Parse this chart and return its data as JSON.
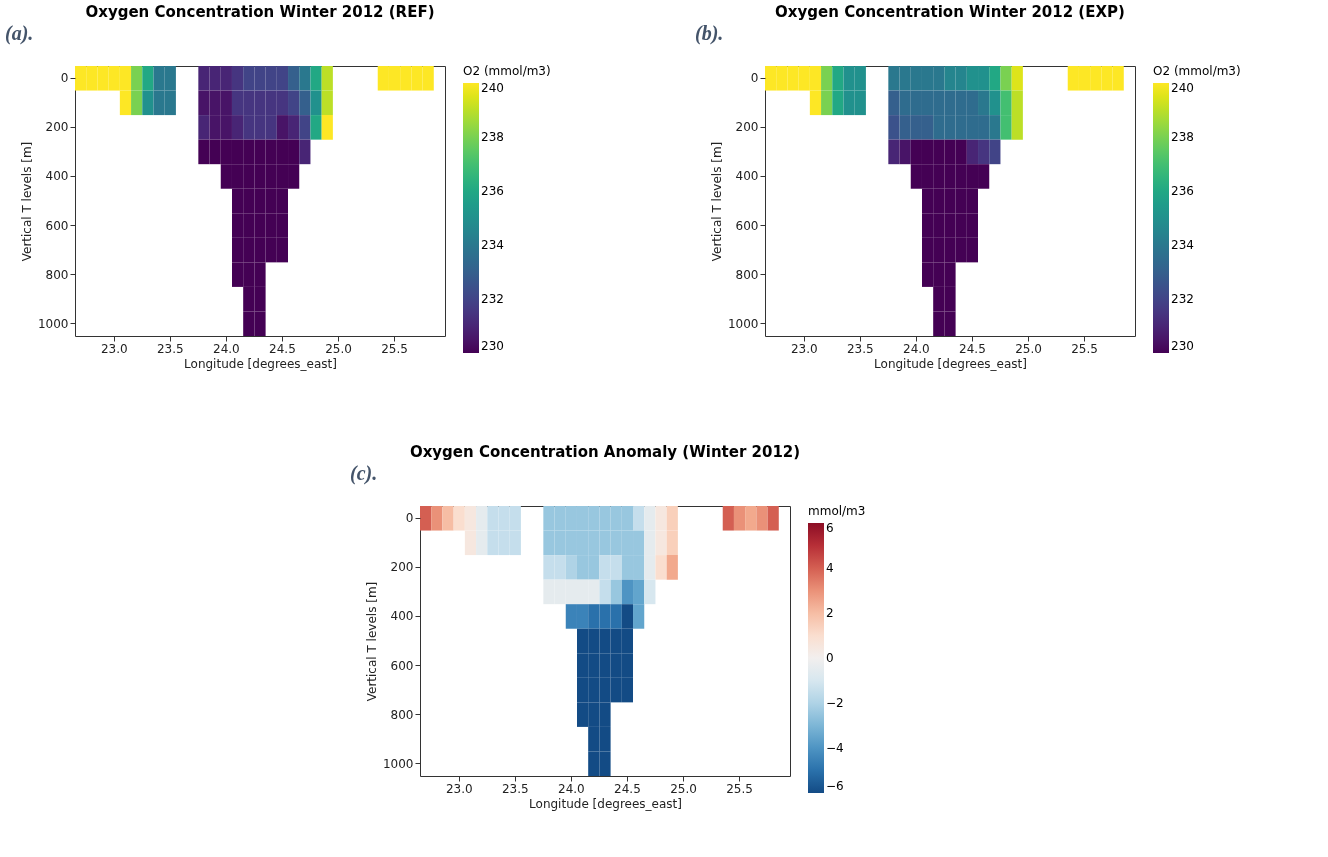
{
  "chart_data": [
    {
      "type": "heatmap",
      "title": "Oxygen Concentration Winter 2012 (REF)",
      "annotations": [
        "(a)."
      ],
      "xlabel": "Longitude [degrees_east]",
      "ylabel": "Vertical T levels [m]",
      "clabel": "O2 (mmol/m3)",
      "clim": [
        230,
        240
      ],
      "cticks": [
        230,
        232,
        234,
        236,
        238,
        240
      ],
      "categories": [
        null,
        null,
        null,
        "23.0",
        null,
        null,
        null,
        null,
        "23.5",
        null,
        null,
        null,
        null,
        "24.0",
        null,
        null,
        null,
        null,
        "24.5",
        null,
        null,
        null,
        null,
        "25.0",
        null,
        null,
        null,
        null,
        "25.5",
        null,
        null,
        null,
        null
      ],
      "y_categories": [
        "0",
        null,
        "200",
        null,
        "400",
        null,
        "600",
        null,
        "800",
        null,
        "1000"
      ],
      "cells": [
        [
          240,
          240,
          240,
          240,
          240,
          238,
          236,
          234,
          234,
          null,
          null,
          231,
          231,
          231,
          231.5,
          232,
          232,
          232,
          232,
          233,
          234,
          236,
          239,
          null,
          null,
          null,
          null,
          240,
          240,
          240,
          240,
          240,
          null
        ],
        [
          null,
          null,
          null,
          null,
          240,
          238,
          235,
          234,
          234,
          null,
          null,
          230.5,
          230.5,
          230.5,
          231.5,
          231.5,
          231.5,
          231.5,
          231.5,
          232,
          233,
          235,
          239,
          null,
          null,
          null,
          null,
          null,
          null,
          null,
          null,
          null,
          null
        ],
        [
          null,
          null,
          null,
          null,
          null,
          null,
          null,
          null,
          null,
          null,
          null,
          231,
          230.5,
          230.5,
          231,
          231.5,
          231.5,
          231.5,
          230.5,
          231,
          232,
          236,
          240,
          null,
          null,
          null,
          null,
          null,
          null,
          null,
          null,
          null,
          null
        ],
        [
          null,
          null,
          null,
          null,
          null,
          null,
          null,
          null,
          null,
          null,
          null,
          230,
          230,
          230,
          230,
          230,
          230,
          230,
          230,
          230,
          231,
          null,
          null,
          null,
          null,
          null,
          null,
          null,
          null,
          null,
          null,
          null,
          null
        ],
        [
          null,
          null,
          null,
          null,
          null,
          null,
          null,
          null,
          null,
          null,
          null,
          null,
          null,
          230,
          230,
          230,
          230,
          230,
          230,
          230,
          null,
          null,
          null,
          null,
          null,
          null,
          null,
          null,
          null,
          null,
          null,
          null,
          null
        ],
        [
          null,
          null,
          null,
          null,
          null,
          null,
          null,
          null,
          null,
          null,
          null,
          null,
          null,
          null,
          230,
          230,
          230,
          230,
          230,
          null,
          null,
          null,
          null,
          null,
          null,
          null,
          null,
          null,
          null,
          null,
          null,
          null,
          null
        ],
        [
          null,
          null,
          null,
          null,
          null,
          null,
          null,
          null,
          null,
          null,
          null,
          null,
          null,
          null,
          230,
          230,
          230,
          230,
          230,
          null,
          null,
          null,
          null,
          null,
          null,
          null,
          null,
          null,
          null,
          null,
          null,
          null,
          null
        ],
        [
          null,
          null,
          null,
          null,
          null,
          null,
          null,
          null,
          null,
          null,
          null,
          null,
          null,
          null,
          230,
          230,
          230,
          230,
          230,
          null,
          null,
          null,
          null,
          null,
          null,
          null,
          null,
          null,
          null,
          null,
          null,
          null,
          null
        ],
        [
          null,
          null,
          null,
          null,
          null,
          null,
          null,
          null,
          null,
          null,
          null,
          null,
          null,
          null,
          230,
          230,
          230,
          null,
          null,
          null,
          null,
          null,
          null,
          null,
          null,
          null,
          null,
          null,
          null,
          null,
          null,
          null,
          null
        ],
        [
          null,
          null,
          null,
          null,
          null,
          null,
          null,
          null,
          null,
          null,
          null,
          null,
          null,
          null,
          null,
          230,
          230,
          null,
          null,
          null,
          null,
          null,
          null,
          null,
          null,
          null,
          null,
          null,
          null,
          null,
          null,
          null,
          null
        ],
        [
          null,
          null,
          null,
          null,
          null,
          null,
          null,
          null,
          null,
          null,
          null,
          null,
          null,
          null,
          null,
          230,
          230,
          null,
          null,
          null,
          null,
          null,
          null,
          null,
          null,
          null,
          null,
          null,
          null,
          null,
          null,
          null,
          null
        ]
      ]
    },
    {
      "type": "heatmap",
      "title": "Oxygen Concentration Winter 2012 (EXP)",
      "annotations": [
        "(b)."
      ],
      "xlabel": "Longitude [degrees_east]",
      "ylabel": "Vertical T levels [m]",
      "clabel": "O2 (mmol/m3)",
      "clim": [
        230,
        240
      ],
      "cticks": [
        230,
        232,
        234,
        236,
        238,
        240
      ],
      "categories": [
        null,
        null,
        null,
        "23.0",
        null,
        null,
        null,
        null,
        "23.5",
        null,
        null,
        null,
        null,
        "24.0",
        null,
        null,
        null,
        null,
        "24.5",
        null,
        null,
        null,
        null,
        "25.0",
        null,
        null,
        null,
        null,
        "25.5",
        null,
        null,
        null,
        null
      ],
      "y_categories": [
        "0",
        null,
        "200",
        null,
        "400",
        null,
        "600",
        null,
        "800",
        null,
        "1000"
      ],
      "cells": [
        [
          240,
          240,
          240,
          240,
          240,
          238,
          236,
          235,
          235,
          null,
          null,
          234,
          234,
          234,
          234,
          234,
          234.5,
          234.5,
          235,
          235,
          236,
          238,
          239.5,
          null,
          null,
          null,
          null,
          240,
          240,
          240,
          240,
          240,
          null
        ],
        [
          null,
          null,
          null,
          null,
          240,
          238,
          236,
          235,
          235,
          null,
          null,
          233,
          233.5,
          233.5,
          233.5,
          233.5,
          233.5,
          233.5,
          233.5,
          234,
          235,
          237,
          239,
          null,
          null,
          null,
          null,
          null,
          null,
          null,
          null,
          null,
          null
        ],
        [
          null,
          null,
          null,
          null,
          null,
          null,
          null,
          null,
          null,
          null,
          null,
          232.5,
          233,
          233,
          233,
          233.5,
          233.5,
          233.5,
          233.5,
          233.5,
          234,
          237,
          239,
          null,
          null,
          null,
          null,
          null,
          null,
          null,
          null,
          null,
          null
        ],
        [
          null,
          null,
          null,
          null,
          null,
          null,
          null,
          null,
          null,
          null,
          null,
          231,
          230.5,
          230,
          230,
          230,
          230,
          230,
          231,
          231.5,
          232,
          null,
          null,
          null,
          null,
          null,
          null,
          null,
          null,
          null,
          null,
          null,
          null
        ],
        [
          null,
          null,
          null,
          null,
          null,
          null,
          null,
          null,
          null,
          null,
          null,
          null,
          null,
          230,
          230,
          230,
          230,
          230,
          230,
          230,
          null,
          null,
          null,
          null,
          null,
          null,
          null,
          null,
          null,
          null,
          null,
          null,
          null
        ],
        [
          null,
          null,
          null,
          null,
          null,
          null,
          null,
          null,
          null,
          null,
          null,
          null,
          null,
          null,
          230,
          230,
          230,
          230,
          230,
          null,
          null,
          null,
          null,
          null,
          null,
          null,
          null,
          null,
          null,
          null,
          null,
          null,
          null
        ],
        [
          null,
          null,
          null,
          null,
          null,
          null,
          null,
          null,
          null,
          null,
          null,
          null,
          null,
          null,
          230,
          230,
          230,
          230,
          230,
          null,
          null,
          null,
          null,
          null,
          null,
          null,
          null,
          null,
          null,
          null,
          null,
          null,
          null
        ],
        [
          null,
          null,
          null,
          null,
          null,
          null,
          null,
          null,
          null,
          null,
          null,
          null,
          null,
          null,
          230,
          230,
          230,
          230,
          230,
          null,
          null,
          null,
          null,
          null,
          null,
          null,
          null,
          null,
          null,
          null,
          null,
          null,
          null
        ],
        [
          null,
          null,
          null,
          null,
          null,
          null,
          null,
          null,
          null,
          null,
          null,
          null,
          null,
          null,
          230,
          230,
          230,
          null,
          null,
          null,
          null,
          null,
          null,
          null,
          null,
          null,
          null,
          null,
          null,
          null,
          null,
          null,
          null
        ],
        [
          null,
          null,
          null,
          null,
          null,
          null,
          null,
          null,
          null,
          null,
          null,
          null,
          null,
          null,
          null,
          230,
          230,
          null,
          null,
          null,
          null,
          null,
          null,
          null,
          null,
          null,
          null,
          null,
          null,
          null,
          null,
          null,
          null
        ],
        [
          null,
          null,
          null,
          null,
          null,
          null,
          null,
          null,
          null,
          null,
          null,
          null,
          null,
          null,
          null,
          230,
          230,
          null,
          null,
          null,
          null,
          null,
          null,
          null,
          null,
          null,
          null,
          null,
          null,
          null,
          null,
          null,
          null
        ]
      ]
    },
    {
      "type": "heatmap",
      "title": "Oxygen Concentration Anomaly (Winter 2012)",
      "annotations": [
        "(c)."
      ],
      "xlabel": "Longitude [degrees_east]",
      "ylabel": "Vertical T levels [m]",
      "clabel": "mmol/m3",
      "clim": [
        -6,
        6
      ],
      "cticks": [
        -6,
        -4,
        -2,
        0,
        2,
        4,
        6
      ],
      "categories": [
        null,
        null,
        null,
        "23.0",
        null,
        null,
        null,
        null,
        "23.5",
        null,
        null,
        null,
        null,
        "24.0",
        null,
        null,
        null,
        null,
        "24.5",
        null,
        null,
        null,
        null,
        "25.0",
        null,
        null,
        null,
        null,
        "25.5",
        null,
        null,
        null,
        null
      ],
      "y_categories": [
        "0",
        null,
        "200",
        null,
        "400",
        null,
        "600",
        null,
        "800",
        null,
        "1000"
      ],
      "cells": [
        [
          4,
          3,
          2,
          1,
          0.5,
          -0.5,
          -1.5,
          -1.5,
          -1.5,
          null,
          null,
          -2.5,
          -2.5,
          -2.5,
          -2.5,
          -2.5,
          -2.5,
          -2.5,
          -2.5,
          -1.5,
          -0.5,
          0.5,
          1.5,
          null,
          null,
          null,
          null,
          4,
          3,
          2.5,
          3,
          4,
          null
        ],
        [
          null,
          null,
          null,
          null,
          0.5,
          -0.5,
          -1.5,
          -1.5,
          -1.5,
          null,
          null,
          -2.5,
          -2.5,
          -2.5,
          -2.5,
          -2.5,
          -2.5,
          -2.5,
          -2.5,
          -2.5,
          -0.5,
          0.5,
          1.5,
          null,
          null,
          null,
          null,
          null,
          null,
          null,
          null,
          null,
          null
        ],
        [
          null,
          null,
          null,
          null,
          null,
          null,
          null,
          null,
          null,
          null,
          null,
          -1.5,
          -1.5,
          -2,
          -2.5,
          -2.5,
          -1.5,
          -1.5,
          -2.5,
          -2.5,
          -0.5,
          1,
          2.5,
          null,
          null,
          null,
          null,
          null,
          null,
          null,
          null,
          null,
          null
        ],
        [
          null,
          null,
          null,
          null,
          null,
          null,
          null,
          null,
          null,
          null,
          null,
          -0.5,
          -0.5,
          -0.5,
          -0.5,
          -0.5,
          -1.5,
          -2.5,
          -4,
          -3.5,
          -1,
          null,
          null,
          null,
          null,
          null,
          null,
          null,
          null,
          null,
          null,
          null,
          null
        ],
        [
          null,
          null,
          null,
          null,
          null,
          null,
          null,
          null,
          null,
          null,
          null,
          null,
          null,
          -4.5,
          -4.5,
          -5,
          -5,
          -5,
          -6,
          -3.5,
          null,
          null,
          null,
          null,
          null,
          null,
          null,
          null,
          null,
          null,
          null,
          null,
          null
        ],
        [
          null,
          null,
          null,
          null,
          null,
          null,
          null,
          null,
          null,
          null,
          null,
          null,
          null,
          null,
          -6,
          -6,
          -6,
          -6,
          -6,
          null,
          null,
          null,
          null,
          null,
          null,
          null,
          null,
          null,
          null,
          null,
          null,
          null,
          null
        ],
        [
          null,
          null,
          null,
          null,
          null,
          null,
          null,
          null,
          null,
          null,
          null,
          null,
          null,
          null,
          -6,
          -6,
          -6,
          -6,
          -6,
          null,
          null,
          null,
          null,
          null,
          null,
          null,
          null,
          null,
          null,
          null,
          null,
          null,
          null
        ],
        [
          null,
          null,
          null,
          null,
          null,
          null,
          null,
          null,
          null,
          null,
          null,
          null,
          null,
          null,
          -6,
          -6,
          -6,
          -6,
          -6,
          null,
          null,
          null,
          null,
          null,
          null,
          null,
          null,
          null,
          null,
          null,
          null,
          null,
          null
        ],
        [
          null,
          null,
          null,
          null,
          null,
          null,
          null,
          null,
          null,
          null,
          null,
          null,
          null,
          null,
          -6,
          -6,
          -6,
          null,
          null,
          null,
          null,
          null,
          null,
          null,
          null,
          null,
          null,
          null,
          null,
          null,
          null,
          null,
          null
        ],
        [
          null,
          null,
          null,
          null,
          null,
          null,
          null,
          null,
          null,
          null,
          null,
          null,
          null,
          null,
          null,
          -6,
          -6,
          null,
          null,
          null,
          null,
          null,
          null,
          null,
          null,
          null,
          null,
          null,
          null,
          null,
          null,
          null,
          null
        ],
        [
          null,
          null,
          null,
          null,
          null,
          null,
          null,
          null,
          null,
          null,
          null,
          null,
          null,
          null,
          null,
          -6,
          -6,
          null,
          null,
          null,
          null,
          null,
          null,
          null,
          null,
          null,
          null,
          null,
          null,
          null,
          null,
          null,
          null
        ]
      ]
    }
  ]
}
